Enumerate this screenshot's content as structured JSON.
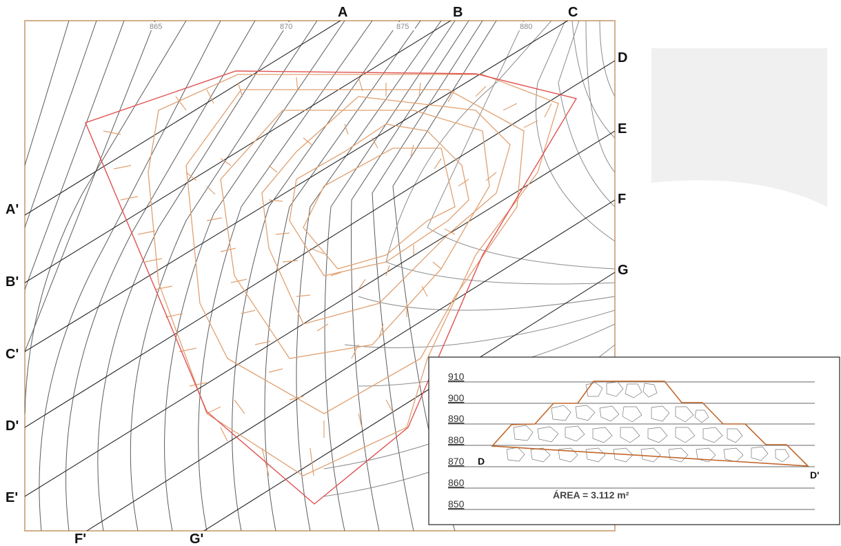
{
  "plan": {
    "contour_labels": [
      "865",
      "870",
      "875",
      "880"
    ],
    "top_labels": [
      "A",
      "B",
      "C"
    ],
    "right_labels": [
      "D",
      "E",
      "F",
      "G"
    ],
    "left_labels": [
      "A'",
      "B'",
      "C'",
      "D'",
      "E'"
    ],
    "bottom_labels": [
      "F'",
      "G'"
    ]
  },
  "section": {
    "elevations": [
      "910",
      "900",
      "890",
      "880",
      "870",
      "860",
      "850"
    ],
    "start_label": "D",
    "end_label": "D'",
    "area_text": "ÁREA = 3.112 m²"
  },
  "colors": {
    "terrain_contour": "#2b2b2b",
    "terrain_contour_faint": "#8a8a8a",
    "pile_contour": "#e0a070",
    "boundary": "#e05050",
    "frame": "#d2b08c",
    "section_profile": "#c0662a"
  }
}
